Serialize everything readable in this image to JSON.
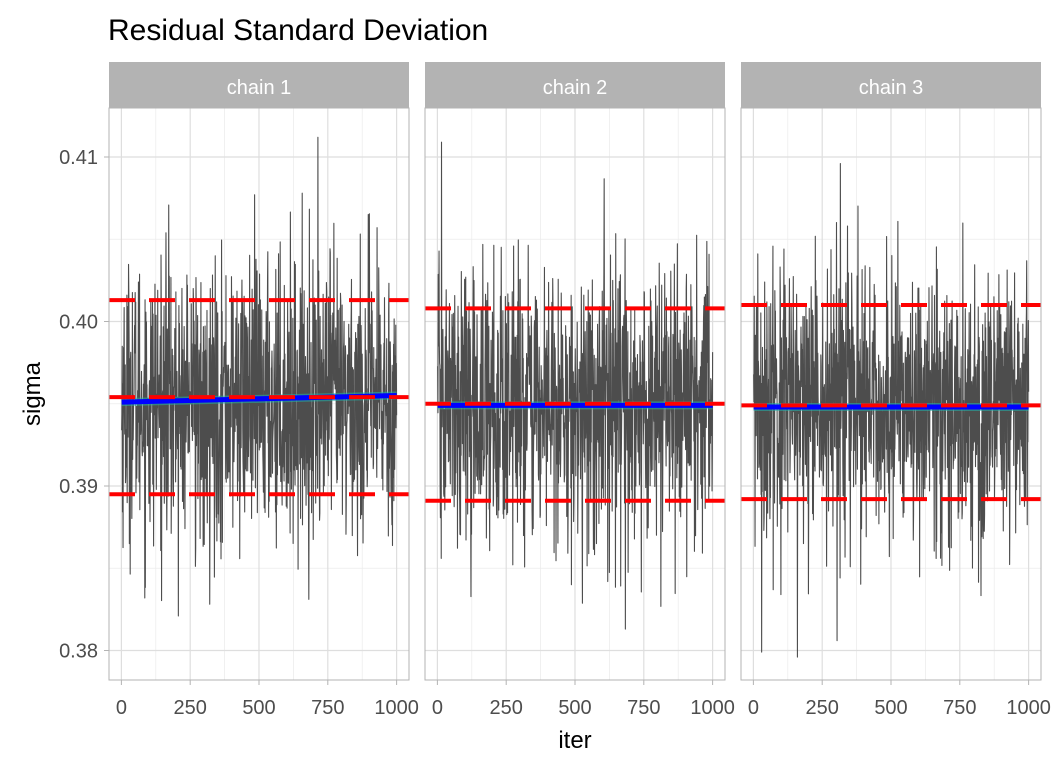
{
  "chart_data": {
    "type": "line",
    "title": "Residual Standard Deviation",
    "xlabel": "iter",
    "ylabel": "sigma",
    "xlim": [
      -45,
      1045
    ],
    "ylim": [
      0.3782,
      0.4122
    ],
    "x_ticks": [
      0,
      250,
      500,
      750,
      1000
    ],
    "x_tick_labels": [
      "0",
      "250",
      "500",
      "750",
      "1000"
    ],
    "y_ticks": [
      0.38,
      0.39,
      0.4,
      0.41
    ],
    "y_tick_labels": [
      "0.38",
      "0.39",
      "0.40",
      "0.41"
    ],
    "grid": true,
    "facets": [
      {
        "label": "chain 1",
        "trace_mean": 0.3952,
        "trace_min": 0.3821,
        "trace_max": 0.4112,
        "smooth": [
          0.3951,
          0.3955
        ],
        "hlines": {
          "upper": 0.4013,
          "mean": 0.3954,
          "lower": 0.3895
        }
      },
      {
        "label": "chain 2",
        "trace_mean": 0.3949,
        "trace_min": 0.3813,
        "trace_max": 0.4109,
        "smooth": [
          0.3949,
          0.3949
        ],
        "hlines": {
          "upper": 0.4008,
          "mean": 0.395,
          "lower": 0.3891
        }
      },
      {
        "label": "chain 3",
        "trace_mean": 0.3948,
        "trace_min": 0.3796,
        "trace_max": 0.4096,
        "smooth": [
          0.3948,
          0.3948
        ],
        "hlines": {
          "upper": 0.401,
          "mean": 0.3949,
          "lower": 0.3892
        }
      }
    ],
    "colors": {
      "trace": "#4d4d4d",
      "smooth": "#0000ff",
      "smooth_band": "#20b2aa",
      "hline": "#ff0000",
      "strip": "#b3b3b3",
      "grid": "#dedede",
      "border": "#b3b3b3"
    }
  }
}
